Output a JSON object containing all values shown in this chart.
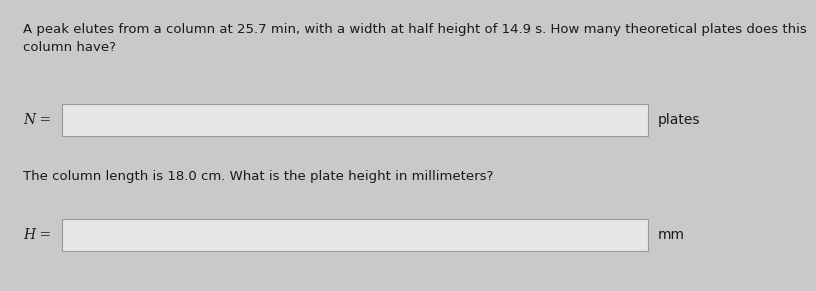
{
  "background_color": "#cac8c8",
  "text_color": "#1a1a1a",
  "question1": "A peak elutes from a column at 25.7 min, with a width at half height of 14.9 s. How many theoretical plates does this\ncolumn have?",
  "label1": "N =",
  "unit1": "plates",
  "question2": "The column length is 18.0 cm. What is the plate height in millimeters?",
  "label2": "H =",
  "unit2": "mm",
  "box_facecolor": "#e8e6e6",
  "box_edgecolor": "#999999",
  "font_size_question": 9.5,
  "font_size_label": 10,
  "font_size_unit": 10,
  "fig_width": 7.0,
  "fig_height": 2.71
}
